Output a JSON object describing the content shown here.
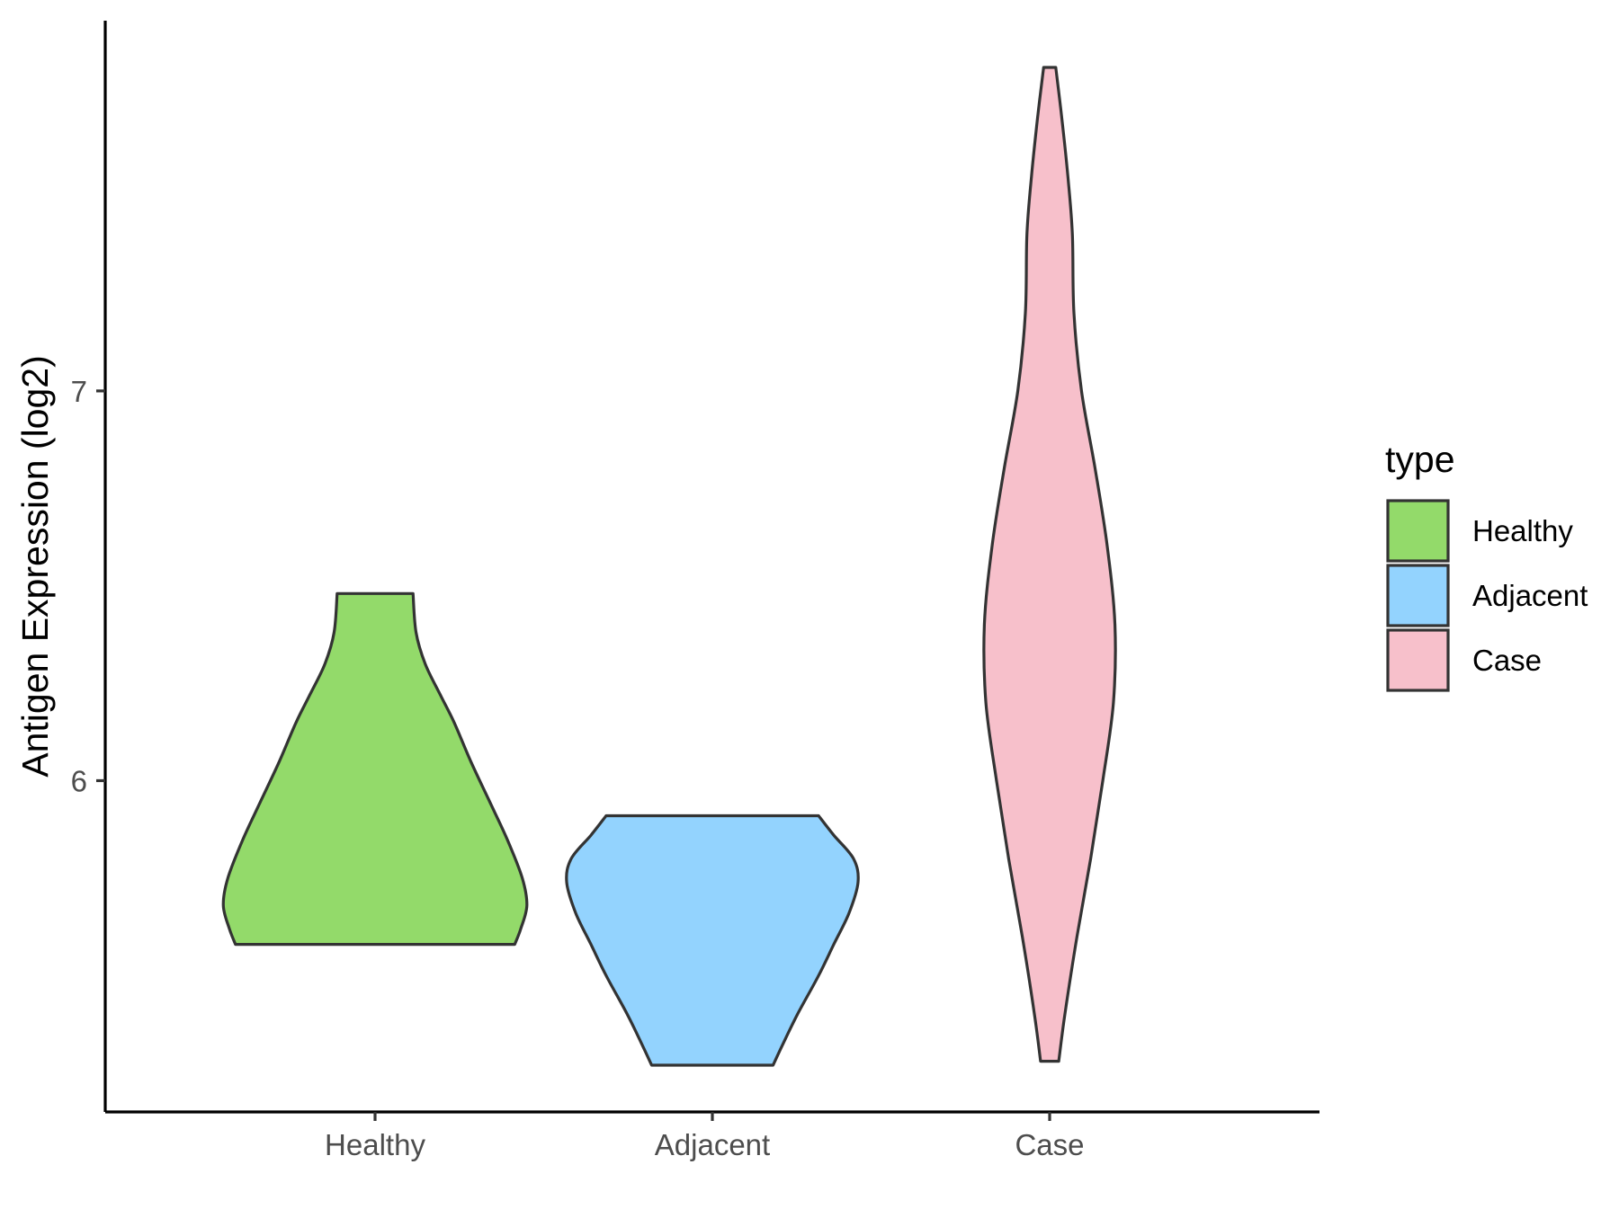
{
  "chart_data": {
    "type": "violin",
    "title": "",
    "xlabel": "",
    "ylabel": "Antigen Expression (log2)",
    "ylim": [
      5.15,
      7.95
    ],
    "y_ticks": [
      6,
      7
    ],
    "categories": [
      "Healthy",
      "Adjacent",
      "Case"
    ],
    "legend": {
      "title": "type",
      "position": "right",
      "entries": [
        "Healthy",
        "Adjacent",
        "Case"
      ]
    },
    "colors": {
      "Healthy": "#93da6a",
      "Adjacent": "#93d3fe",
      "Case": "#f7c0cb",
      "outline": "#333333"
    },
    "grid": false,
    "series": [
      {
        "name": "Healthy",
        "min": 5.58,
        "max": 6.48,
        "density": [
          [
            5.58,
            0.92
          ],
          [
            5.62,
            0.96
          ],
          [
            5.68,
            1.0
          ],
          [
            5.75,
            0.97
          ],
          [
            5.85,
            0.87
          ],
          [
            5.95,
            0.75
          ],
          [
            6.05,
            0.63
          ],
          [
            6.15,
            0.52
          ],
          [
            6.22,
            0.43
          ],
          [
            6.3,
            0.33
          ],
          [
            6.38,
            0.27
          ],
          [
            6.48,
            0.25
          ]
        ]
      },
      {
        "name": "Adjacent",
        "min": 5.27,
        "max": 5.91,
        "density": [
          [
            5.27,
            0.4
          ],
          [
            5.32,
            0.46
          ],
          [
            5.4,
            0.56
          ],
          [
            5.5,
            0.7
          ],
          [
            5.58,
            0.8
          ],
          [
            5.66,
            0.9
          ],
          [
            5.74,
            0.96
          ],
          [
            5.8,
            0.93
          ],
          [
            5.86,
            0.8
          ],
          [
            5.91,
            0.7
          ]
        ]
      },
      {
        "name": "Case",
        "min": 5.28,
        "max": 7.83,
        "density": [
          [
            5.28,
            0.06
          ],
          [
            5.4,
            0.1
          ],
          [
            5.6,
            0.18
          ],
          [
            5.8,
            0.27
          ],
          [
            6.0,
            0.35
          ],
          [
            6.2,
            0.42
          ],
          [
            6.4,
            0.43
          ],
          [
            6.6,
            0.38
          ],
          [
            6.8,
            0.3
          ],
          [
            7.0,
            0.21
          ],
          [
            7.2,
            0.16
          ],
          [
            7.4,
            0.15
          ],
          [
            7.55,
            0.12
          ],
          [
            7.7,
            0.08
          ],
          [
            7.83,
            0.04
          ]
        ]
      }
    ]
  }
}
